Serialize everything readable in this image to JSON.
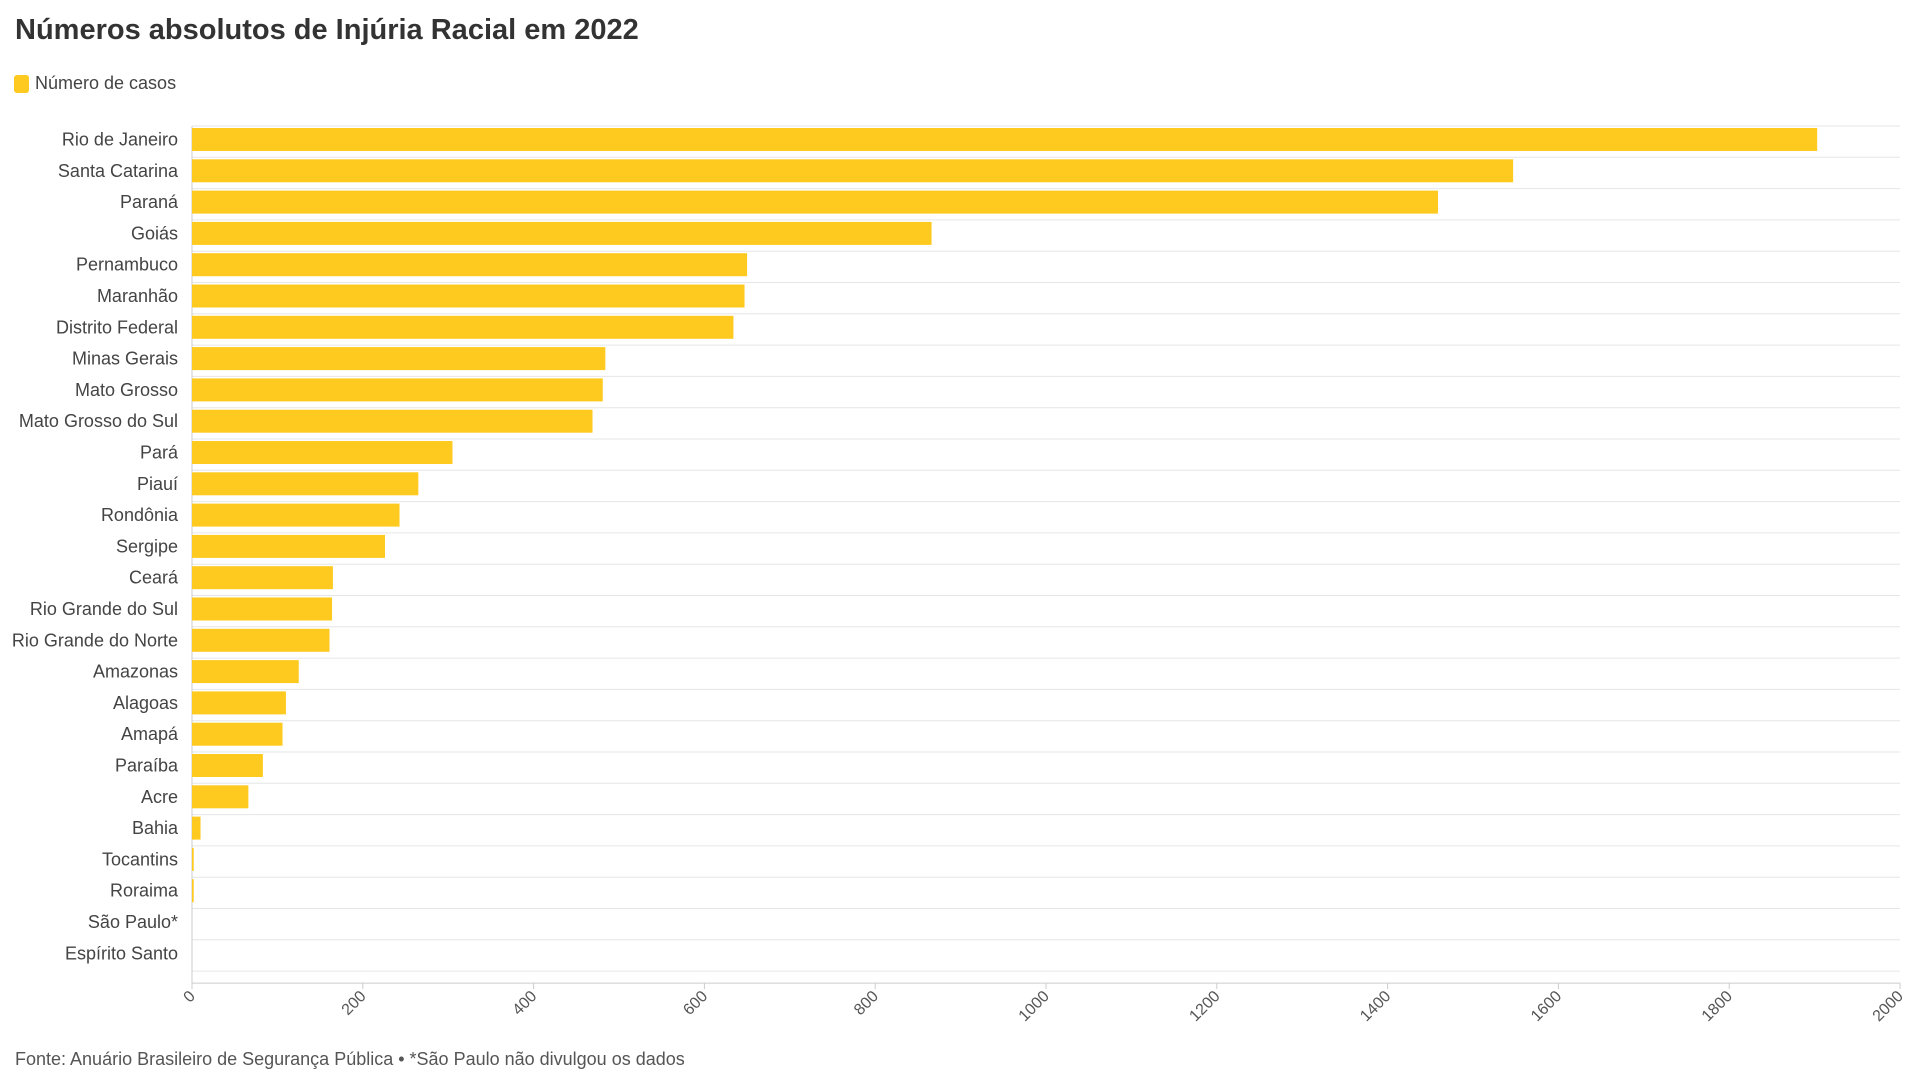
{
  "title": "Números absolutos de Injúria Racial em 2022",
  "source": "Fonte: Anuário Brasileiro de Segurança Pública • *São Paulo não divulgou os dados",
  "colors": {
    "bar": "#FFCA1F",
    "grid": "#e6e6e6",
    "axis": "#cccccc"
  },
  "chart_data": {
    "type": "bar",
    "orientation": "horizontal",
    "title": "Números absolutos de Injúria Racial em 2022",
    "xlabel": "",
    "ylabel": "",
    "xlim": [
      0,
      2000
    ],
    "xticks": [
      0,
      200,
      400,
      600,
      800,
      1000,
      1200,
      1400,
      1600,
      1800,
      2000
    ],
    "grid": true,
    "legend_position": "top-left",
    "categories": [
      "Rio de Janeiro",
      "Santa Catarina",
      "Paraná",
      "Goiás",
      "Pernambuco",
      "Maranhão",
      "Distrito Federal",
      "Minas Gerais",
      "Mato Grosso",
      "Mato Grosso do Sul",
      "Pará",
      "Piauí",
      "Rondônia",
      "Sergipe",
      "Ceará",
      "Rio Grande do Sul",
      "Rio Grande do Norte",
      "Amazonas",
      "Alagoas",
      "Amapá",
      "Paraíba",
      "Acre",
      "Bahia",
      "Tocantins",
      "Roraima",
      "São Paulo*",
      "Espírito Santo"
    ],
    "series": [
      {
        "name": "Número de casos",
        "values": [
          1903,
          1547,
          1459,
          866,
          650,
          647,
          634,
          484,
          481,
          469,
          305,
          265,
          243,
          226,
          165,
          164,
          161,
          125,
          110,
          106,
          83,
          66,
          10,
          2,
          2,
          0,
          0
        ]
      }
    ]
  }
}
